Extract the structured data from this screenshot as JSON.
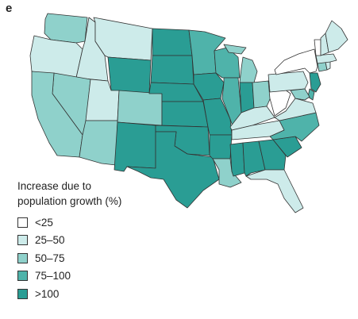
{
  "panel_label": "e",
  "legend": {
    "title_line1": "Increase due to",
    "title_line2": "population growth (%)",
    "items": [
      {
        "label": "<25",
        "color": "#ffffff"
      },
      {
        "label": "25–50",
        "color": "#cdebea"
      },
      {
        "label": "50–75",
        "color": "#8fd1cb"
      },
      {
        "label": "75–100",
        "color": "#4fb3aa"
      },
      {
        "label": ">100",
        "color": "#2a9d94"
      }
    ]
  },
  "states": [
    {
      "name": "WA",
      "class": 3
    },
    {
      "name": "OR",
      "class": 2
    },
    {
      "name": "CA",
      "class": 3
    },
    {
      "name": "NV",
      "class": 3
    },
    {
      "name": "ID",
      "class": 2
    },
    {
      "name": "MT",
      "class": 2
    },
    {
      "name": "WY",
      "class": 5
    },
    {
      "name": "UT",
      "class": 2
    },
    {
      "name": "AZ",
      "class": 3
    },
    {
      "name": "CO",
      "class": 3
    },
    {
      "name": "NM",
      "class": 5
    },
    {
      "name": "ND",
      "class": 5
    },
    {
      "name": "SD",
      "class": 5
    },
    {
      "name": "NE",
      "class": 5
    },
    {
      "name": "KS",
      "class": 5
    },
    {
      "name": "OK",
      "class": 5
    },
    {
      "name": "TX",
      "class": 5
    },
    {
      "name": "MN",
      "class": 4
    },
    {
      "name": "IA",
      "class": 5
    },
    {
      "name": "MO",
      "class": 5
    },
    {
      "name": "AR",
      "class": 5
    },
    {
      "name": "LA",
      "class": 3
    },
    {
      "name": "WI",
      "class": 4
    },
    {
      "name": "IL",
      "class": 4
    },
    {
      "name": "MI",
      "class": 3
    },
    {
      "name": "IN",
      "class": 5
    },
    {
      "name": "OH",
      "class": 3
    },
    {
      "name": "KY",
      "class": 2
    },
    {
      "name": "TN",
      "class": 2
    },
    {
      "name": "MS",
      "class": 5
    },
    {
      "name": "AL",
      "class": 5
    },
    {
      "name": "GA",
      "class": 5
    },
    {
      "name": "FL",
      "class": 2
    },
    {
      "name": "SC",
      "class": 5
    },
    {
      "name": "NC",
      "class": 4
    },
    {
      "name": "VA",
      "class": 2
    },
    {
      "name": "WV",
      "class": 1
    },
    {
      "name": "PA",
      "class": 2
    },
    {
      "name": "NY",
      "class": 1
    },
    {
      "name": "NJ",
      "class": 5
    },
    {
      "name": "DE",
      "class": 4
    },
    {
      "name": "MD",
      "class": 3
    },
    {
      "name": "CT",
      "class": 3
    },
    {
      "name": "RI",
      "class": 2
    },
    {
      "name": "MA",
      "class": 2
    },
    {
      "name": "VT",
      "class": 1
    },
    {
      "name": "NH",
      "class": 2
    },
    {
      "name": "ME",
      "class": 2
    }
  ]
}
